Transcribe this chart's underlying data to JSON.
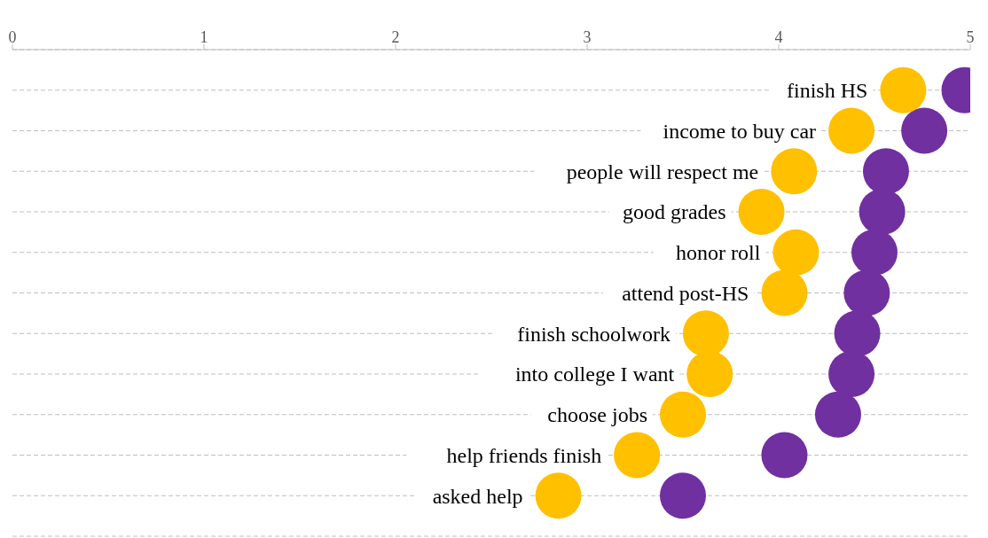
{
  "chart_data": {
    "type": "scatter",
    "orientation": "horizontal",
    "marker": "circle",
    "grid": "y",
    "categories": [
      "finish HS",
      "income to buy car",
      "people will respect me",
      "good grades",
      "honor roll",
      "attend post-HS",
      "finish schoolwork",
      "into college I want",
      "choose jobs",
      "help friends finish",
      "asked help"
    ],
    "series": [
      {
        "color": "#7030a0",
        "values": [
          4.97,
          4.76,
          4.56,
          4.54,
          4.5,
          4.46,
          4.41,
          4.38,
          4.31,
          4.03,
          3.5
        ]
      },
      {
        "color": "#ffc000",
        "values": [
          4.65,
          4.38,
          4.08,
          3.91,
          4.09,
          4.03,
          3.62,
          3.64,
          3.5,
          3.26,
          2.85
        ]
      }
    ],
    "xlim": [
      0,
      5
    ],
    "xticks": [
      0,
      1,
      2,
      3,
      4,
      5
    ]
  }
}
